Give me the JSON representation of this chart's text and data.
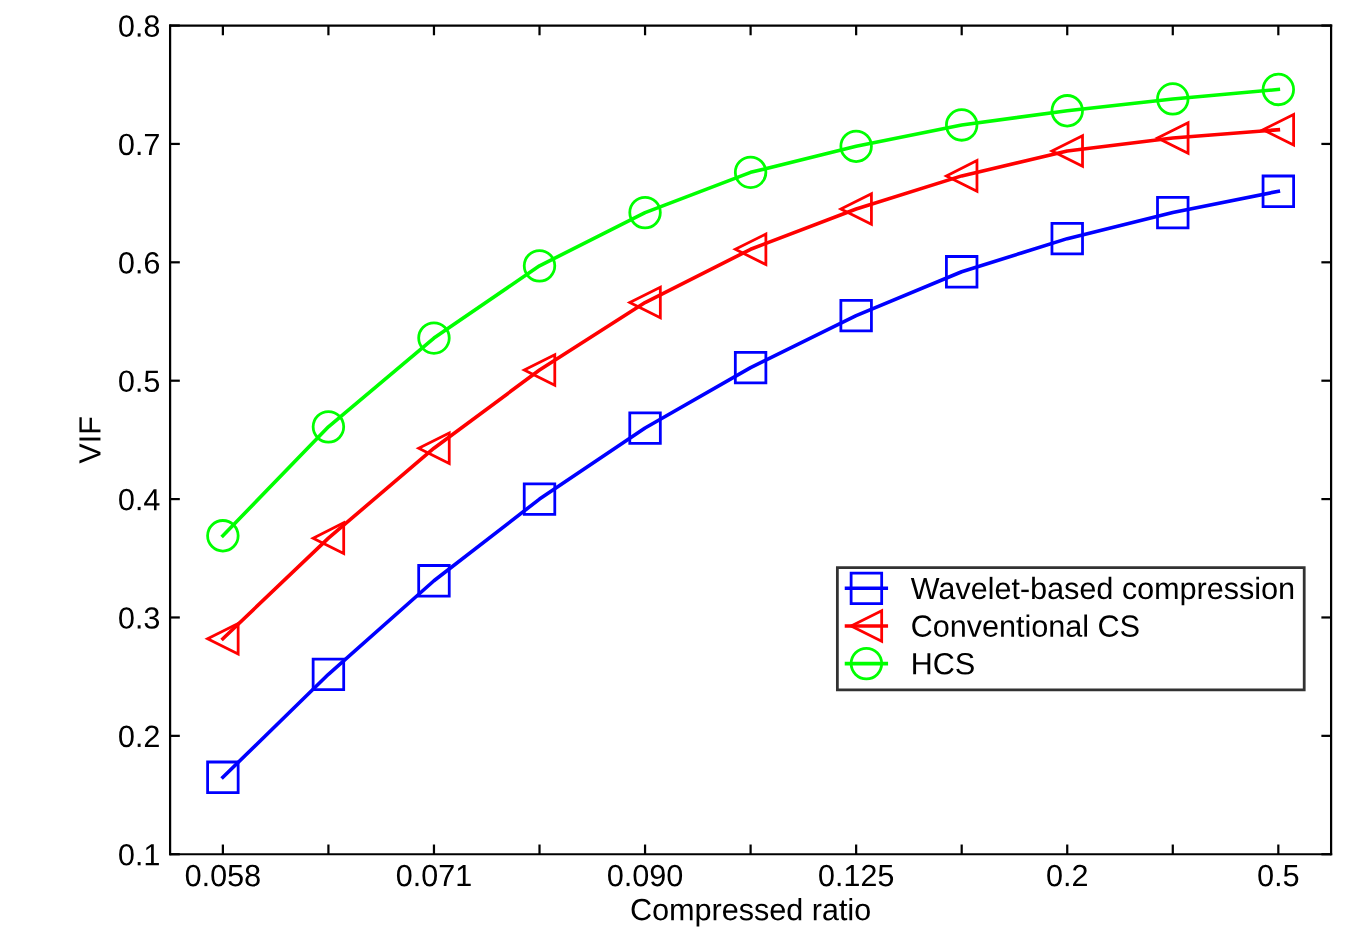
{
  "chart_data": {
    "type": "line",
    "xlabel": "Compressed ratio",
    "ylabel": "VIF",
    "categories": [
      "0.058",
      null,
      "0.071",
      null,
      "0.090",
      null,
      "0.125",
      null,
      "0.2",
      null,
      "0.5"
    ],
    "series": [
      {
        "name": "Wavelet-based compression",
        "color": "#0000ff",
        "marker": "square",
        "values": [
          0.165,
          0.252,
          0.331,
          0.4,
          0.46,
          0.511,
          0.555,
          0.592,
          0.62,
          0.642,
          0.66
        ]
      },
      {
        "name": "Conventional CS",
        "color": "#ff0000",
        "marker": "triangle",
        "values": [
          0.282,
          0.367,
          0.443,
          0.509,
          0.566,
          0.611,
          0.645,
          0.673,
          0.694,
          0.705,
          0.712
        ]
      },
      {
        "name": "HCS",
        "color": "#00ff00",
        "marker": "circle",
        "values": [
          0.369,
          0.461,
          0.536,
          0.597,
          0.642,
          0.676,
          0.698,
          0.716,
          0.728,
          0.738,
          0.746
        ]
      }
    ],
    "ylim": [
      0.1,
      0.8
    ],
    "yticks": [
      0.1,
      0.2,
      0.3,
      0.4,
      0.5,
      0.6,
      0.7,
      0.8
    ],
    "grid": false,
    "legend": "bottom right",
    "line_style": "solid"
  }
}
